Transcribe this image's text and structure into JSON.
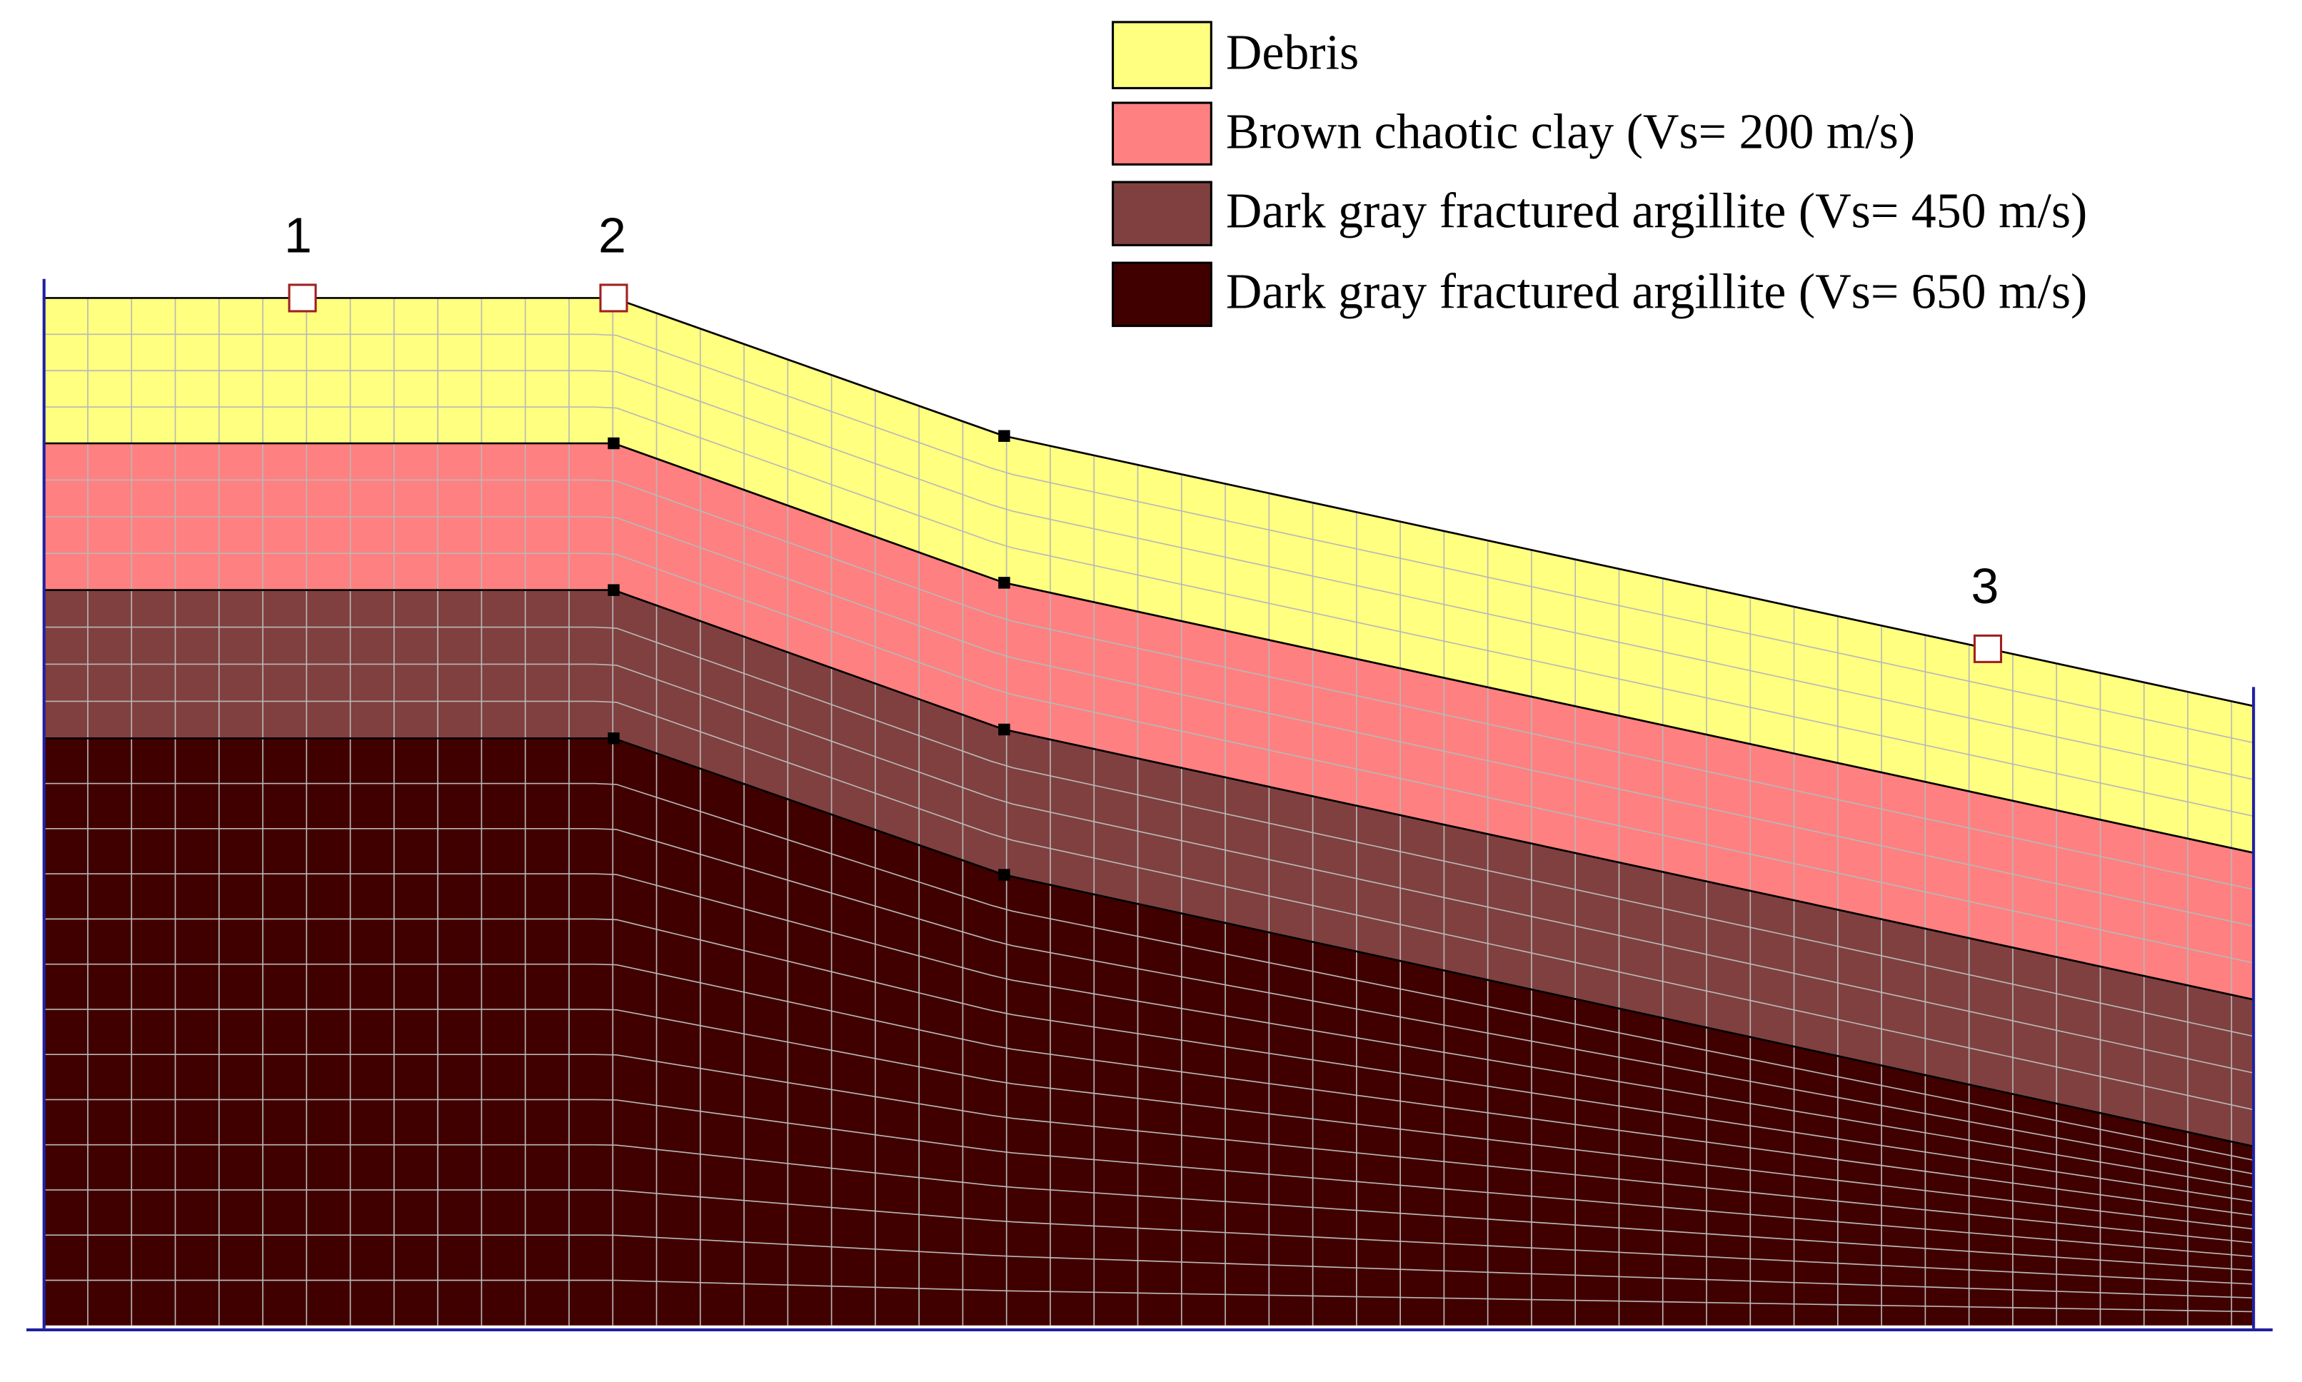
{
  "legend": {
    "items": [
      {
        "label": "Debris"
      },
      {
        "label": "Brown chaotic clay (Vs= 200 m/s)"
      },
      {
        "label": "Dark gray fractured argillite (Vs= 450 m/s)"
      },
      {
        "label": "Dark gray fractured argillite (Vs= 650 m/s)"
      }
    ]
  },
  "points": [
    {
      "label": "1"
    },
    {
      "label": "2"
    },
    {
      "label": "3"
    }
  ]
}
